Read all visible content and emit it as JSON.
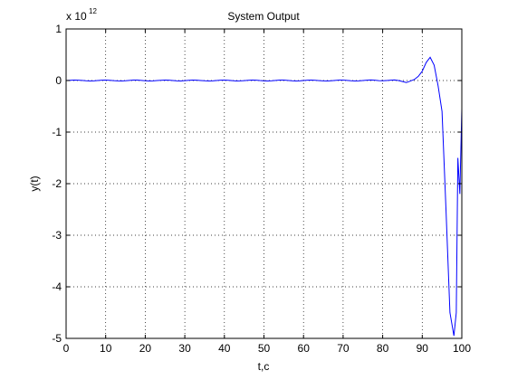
{
  "chart_data": {
    "type": "line",
    "title": "System Output",
    "xlabel": "t,c",
    "ylabel": "y(t)",
    "y_exponent_base": "x 10",
    "y_exponent_power": "12",
    "xlim": [
      0,
      100
    ],
    "ylim": [
      -5,
      1
    ],
    "grid": true,
    "x_ticks": [
      0,
      10,
      20,
      30,
      40,
      50,
      60,
      70,
      80,
      90,
      100
    ],
    "y_ticks": [
      -5,
      -4,
      -3,
      -2,
      -1,
      0,
      1
    ],
    "line_color": "#0000ff",
    "series": [
      {
        "x": [
          0,
          1,
          2,
          3,
          4,
          5,
          6,
          7,
          8,
          9,
          10,
          11,
          12,
          13,
          14,
          15,
          16,
          17,
          18,
          19,
          20,
          21,
          22,
          23,
          24,
          25,
          26,
          27,
          28,
          29,
          30,
          31,
          32,
          33,
          34,
          35,
          36,
          37,
          38,
          39,
          40,
          41,
          42,
          43,
          44,
          45,
          46,
          47,
          48,
          49,
          50,
          51,
          52,
          53,
          54,
          55,
          56,
          57,
          58,
          59,
          60,
          61,
          62,
          63,
          64,
          65,
          66,
          67,
          68,
          69,
          70,
          71,
          72,
          73,
          74,
          75,
          76,
          77,
          78,
          79,
          80,
          81,
          82,
          83,
          84,
          85,
          86,
          87,
          88,
          89,
          90,
          91,
          92,
          93,
          94,
          95,
          96,
          97,
          98,
          98.6,
          99,
          99.5,
          100
        ],
        "y": [
          0,
          0.004,
          0.008,
          0.006,
          0.002,
          -0.004,
          -0.008,
          -0.006,
          0,
          0.006,
          0.009,
          0.005,
          -0.002,
          -0.007,
          -0.008,
          -0.004,
          0.003,
          0.008,
          0.008,
          0.003,
          -0.004,
          -0.008,
          -0.007,
          -0.001,
          0.005,
          0.009,
          0.006,
          -0.001,
          -0.007,
          -0.008,
          -0.003,
          0.004,
          0.008,
          0.007,
          0.001,
          -0.005,
          -0.009,
          -0.006,
          0.001,
          0.007,
          0.009,
          0.004,
          -0.003,
          -0.008,
          -0.007,
          -0.002,
          0.005,
          0.009,
          0.006,
          -0.001,
          -0.006,
          -0.008,
          -0.004,
          0.003,
          0.008,
          0.008,
          0.002,
          -0.004,
          -0.008,
          -0.006,
          0,
          0.006,
          0.009,
          0.005,
          -0.002,
          -0.007,
          -0.008,
          -0.004,
          0.003,
          0.008,
          0.008,
          0.003,
          -0.004,
          -0.008,
          -0.007,
          -0.001,
          0.006,
          0.01,
          0.006,
          -0.002,
          -0.005,
          0,
          0.006,
          0.01,
          0,
          -0.02,
          -0.04,
          -0.01,
          0.02,
          0.08,
          0.18,
          0.35,
          0.45,
          0.3,
          -0.1,
          -0.6,
          -2.5,
          -4.5,
          -4.95,
          -4.5,
          -1.5,
          -2.2,
          -0.55
        ]
      }
    ]
  }
}
